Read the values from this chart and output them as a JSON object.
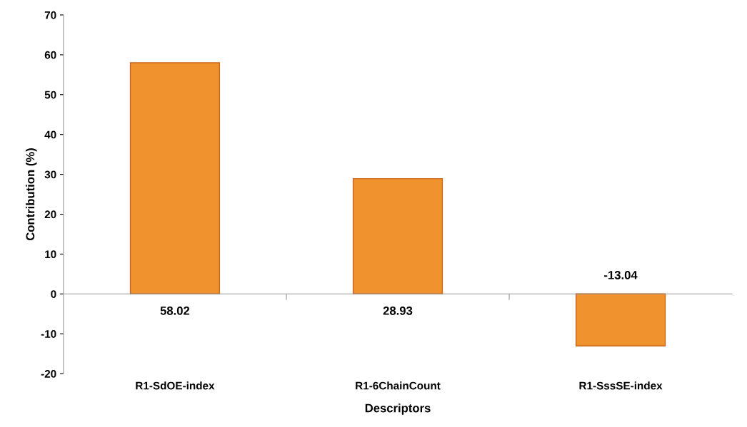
{
  "chart_data": {
    "type": "bar",
    "xlabel": "Descriptors",
    "ylabel": "Contribution (%)",
    "categories": [
      "R1-SdOE-index",
      "R1-6ChainCount",
      "R1-SssSE-index"
    ],
    "values": [
      58.02,
      28.93,
      -13.04
    ],
    "color": "#f0922e",
    "ylim": [
      -20,
      70
    ],
    "yticks": [
      -20,
      -10,
      0,
      10,
      20,
      30,
      40,
      50,
      60,
      70
    ],
    "data_labels": true,
    "legend": false
  }
}
